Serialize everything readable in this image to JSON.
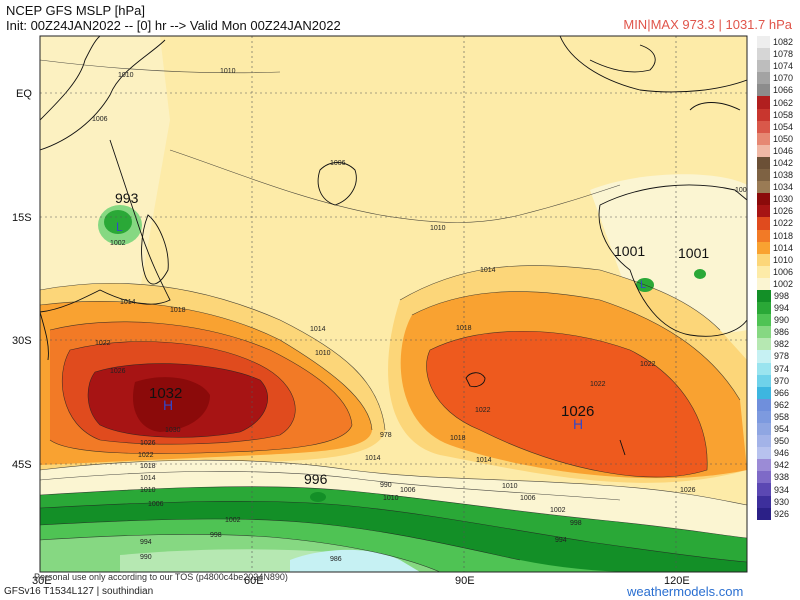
{
  "header": {
    "title": "NCEP GFS MSLP [hPa]",
    "init": "Init: 00Z24JAN2022 -- [0] hr --> Valid Mon 00Z24JAN2022",
    "minmax": "MIN|MAX 973.3 | 1031.7 hPa"
  },
  "axes": {
    "lat_labels": [
      "EQ",
      "15S",
      "30S",
      "45S"
    ],
    "lon_labels": [
      "30E",
      "60E",
      "90E",
      "120E"
    ]
  },
  "centers": [
    {
      "label": "993",
      "type": "L"
    },
    {
      "label": "1001",
      "type": "L"
    },
    {
      "label": "1001",
      "type": "L"
    },
    {
      "label": "1032",
      "type": "H"
    },
    {
      "label": "1026",
      "type": "H"
    },
    {
      "label": "996",
      "type": "L"
    }
  ],
  "contour_labels": [
    "1010",
    "1010",
    "1006",
    "1002",
    "1010",
    "1006",
    "1014",
    "1018",
    "1014",
    "1010",
    "1014",
    "1022",
    "1026",
    "1030",
    "1026",
    "1022",
    "1018",
    "1014",
    "1010",
    "1006",
    "1002",
    "998",
    "994",
    "990",
    "986",
    "978",
    "1018",
    "1022",
    "1022",
    "1026",
    "1022",
    "1018",
    "1014",
    "1010",
    "1006",
    "1002",
    "998",
    "994",
    "990",
    "1014",
    "1010",
    "1006",
    "1002"
  ],
  "colorbar": {
    "levels": [
      1082,
      1078,
      1074,
      1070,
      1066,
      1062,
      1058,
      1054,
      1050,
      1046,
      1042,
      1038,
      1034,
      1030,
      1026,
      1022,
      1018,
      1014,
      1010,
      1006,
      1002,
      998,
      994,
      990,
      986,
      982,
      978,
      974,
      970,
      966,
      962,
      958,
      954,
      950,
      946,
      942,
      938,
      934,
      930,
      926
    ],
    "colors": [
      "#eeeeee",
      "#d6d6d6",
      "#bdbdbd",
      "#a3a3a3",
      "#8c8c8c",
      "#b11f1f",
      "#c8362e",
      "#d9584a",
      "#e68873",
      "#f0b8a5",
      "#6b5036",
      "#7e6243",
      "#9a7b55",
      "#8b0a0a",
      "#a71414",
      "#e04b1e",
      "#f27a26",
      "#f9a231",
      "#fcd679",
      "#fdeba8",
      "#fbf5d2",
      "#138f27",
      "#2aa837",
      "#4fc354",
      "#86d882",
      "#b6e8b2",
      "#c6f1f3",
      "#9ae4ef",
      "#6fd2ea",
      "#3db6e0",
      "#6f8fdc",
      "#7d9adf",
      "#8fa6e2",
      "#a3b3e8",
      "#b7c2ee",
      "#9b8bd6",
      "#7e6ac7",
      "#5b48b3",
      "#3d2f9c",
      "#2b2087"
    ]
  },
  "footer": {
    "model": "GFSv16 T1534L127 | southindian",
    "brand": "weathermodels.com",
    "disclaimer": "Personal use only according to our TOS (p4800c4be2024N890)"
  }
}
